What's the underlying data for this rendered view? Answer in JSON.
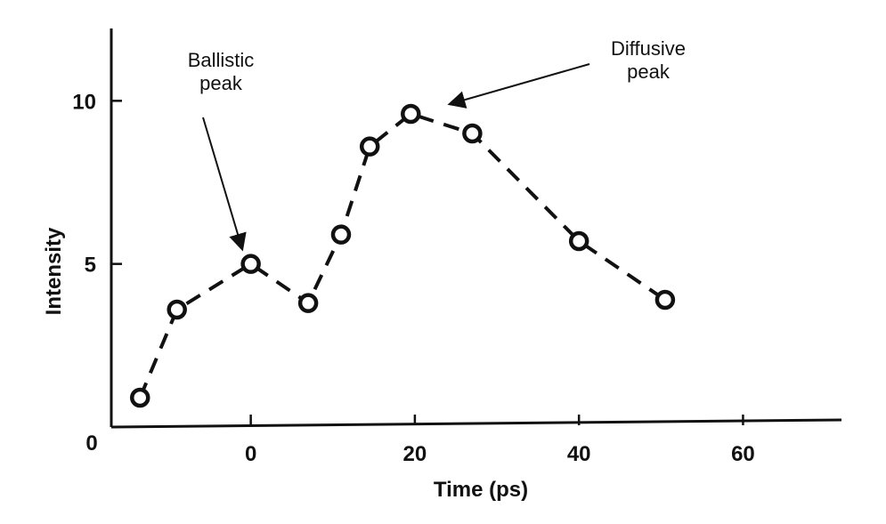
{
  "chart_data": {
    "type": "line",
    "xlabel": "Time (ps)",
    "ylabel": "Intensity",
    "xlim": [
      -17,
      72
    ],
    "ylim": [
      0,
      12
    ],
    "xticks": [
      0,
      20,
      40,
      60
    ],
    "yticks": [
      5,
      10
    ],
    "origin_label": "0",
    "grid": false,
    "series": [
      {
        "line_style": "dashed",
        "marker": "open-circle",
        "points": [
          {
            "x": -13.5,
            "y": 0.9
          },
          {
            "x": -9,
            "y": 3.6
          },
          {
            "x": 0,
            "y": 5.0
          },
          {
            "x": 7,
            "y": 3.8
          },
          {
            "x": 11,
            "y": 5.9
          },
          {
            "x": 14.5,
            "y": 8.6
          },
          {
            "x": 19.5,
            "y": 9.6
          },
          {
            "x": 27,
            "y": 9.0
          },
          {
            "x": 40,
            "y": 5.7
          },
          {
            "x": 50.5,
            "y": 3.9
          }
        ]
      }
    ],
    "annotations": [
      {
        "id": "ballistic",
        "lines": [
          "Ballistic",
          "peak"
        ],
        "target": {
          "x": 0,
          "y": 5.0
        }
      },
      {
        "id": "diffusive",
        "lines": [
          "Diffusive",
          "peak"
        ],
        "target": {
          "x": 22,
          "y": 9.8
        }
      }
    ]
  }
}
